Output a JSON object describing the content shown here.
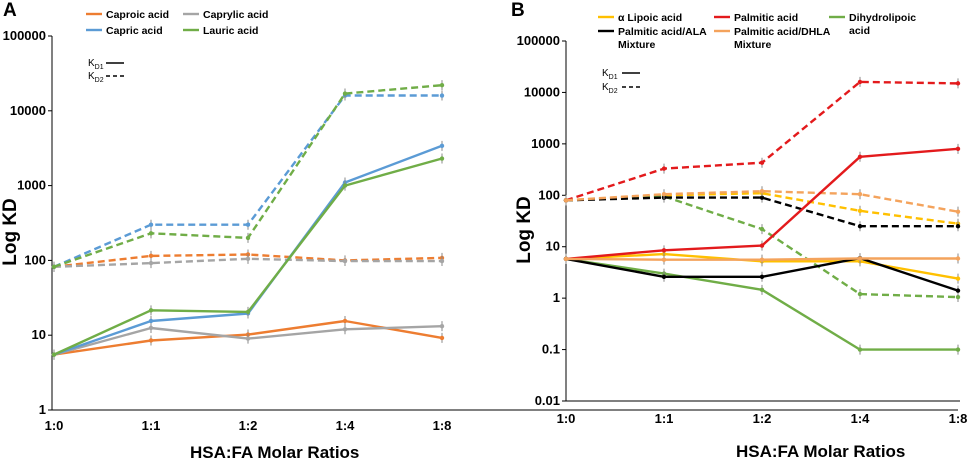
{
  "colors": {
    "orange": "#ed7d31",
    "gray": "#a5a5a5",
    "blue": "#5b9bd5",
    "green": "#70ad47",
    "yellow": "#ffc000",
    "red": "#e31a1c",
    "black": "#000000",
    "lightorange": "#f4a35c",
    "axis": "#000000"
  },
  "chart_data": [
    {
      "panel": "A",
      "type": "line",
      "scale": "log",
      "categories": [
        "1:0",
        "1:1",
        "1:2",
        "1:4",
        "1:8"
      ],
      "xlabel": "HSA:FA Molar Ratios",
      "ylabel": "Log KD",
      "ylim": [
        1,
        100000
      ],
      "yticks": [
        "1",
        "10",
        "100",
        "1000",
        "10000",
        "100000"
      ],
      "legend": [
        {
          "label": "Caproic acid",
          "color": "orange"
        },
        {
          "label": "Caprylic acid",
          "color": "gray"
        },
        {
          "label": "Capric acid",
          "color": "blue"
        },
        {
          "label": "Lauric acid",
          "color": "green"
        }
      ],
      "style_legend": {
        "solid": "KD1",
        "dashed": "KD2"
      },
      "series": [
        {
          "name": "Caproic acid KD1",
          "color": "orange",
          "dash": false,
          "values": [
            5.5,
            8.5,
            10.2,
            15.5,
            9.2
          ]
        },
        {
          "name": "Caprylic acid KD1",
          "color": "gray",
          "dash": false,
          "values": [
            5.5,
            12.5,
            9.0,
            12.0,
            13.2
          ]
        },
        {
          "name": "Capric acid KD1",
          "color": "blue",
          "dash": false,
          "values": [
            5.5,
            15.5,
            19.5,
            1100,
            3400
          ]
        },
        {
          "name": "Lauric acid KD1",
          "color": "green",
          "dash": false,
          "values": [
            5.5,
            21.5,
            20.5,
            1000,
            2300
          ]
        },
        {
          "name": "Caproic acid KD2",
          "color": "orange",
          "dash": true,
          "values": [
            82,
            115,
            120,
            100,
            108
          ]
        },
        {
          "name": "Caprylic acid KD2",
          "color": "gray",
          "dash": true,
          "values": [
            82,
            92,
            105,
            98,
            98
          ]
        },
        {
          "name": "Capric acid KD2",
          "color": "blue",
          "dash": true,
          "values": [
            82,
            300,
            300,
            16000,
            16000
          ]
        },
        {
          "name": "Lauric acid KD2",
          "color": "green",
          "dash": true,
          "values": [
            82,
            230,
            200,
            17000,
            22000
          ]
        }
      ]
    },
    {
      "panel": "B",
      "type": "line",
      "scale": "log",
      "categories": [
        "1:0",
        "1:1",
        "1:2",
        "1:4",
        "1:8"
      ],
      "xlabel": "HSA:FA Molar Ratios",
      "ylabel": "Log KD",
      "ylim": [
        0.01,
        100000
      ],
      "yticks": [
        "0.01",
        "0.1",
        "1",
        "10",
        "100",
        "1000",
        "10000",
        "100000"
      ],
      "legend": [
        {
          "label": "α Lipoic acid",
          "color": "yellow"
        },
        {
          "label": "Palmitic acid",
          "color": "red"
        },
        {
          "label": "Dihydrolipoic acid",
          "color": "green"
        },
        {
          "label": "Palmitic acid/ALA Mixture",
          "color": "black"
        },
        {
          "label": "Palmitic acid/DHLA Mixture",
          "color": "lightorange"
        }
      ],
      "style_legend": {
        "solid": "KD1",
        "dashed": "KD2"
      },
      "series": [
        {
          "name": "α Lipoic acid KD1",
          "color": "yellow",
          "dash": false,
          "values": [
            5.8,
            7.2,
            5.2,
            5.2,
            2.4
          ]
        },
        {
          "name": "Palmitic acid KD1",
          "color": "red",
          "dash": false,
          "values": [
            5.8,
            8.5,
            10.5,
            560,
            800
          ]
        },
        {
          "name": "Dihydrolipoic acid KD1",
          "color": "green",
          "dash": false,
          "values": [
            5.8,
            3.0,
            1.45,
            0.1,
            0.1
          ]
        },
        {
          "name": "Palmitic acid/ALA Mixture KD1",
          "color": "black",
          "dash": false,
          "values": [
            5.8,
            2.6,
            2.6,
            6.0,
            1.4
          ]
        },
        {
          "name": "Palmitic acid/DHLA Mixture KD1",
          "color": "lightorange",
          "dash": false,
          "values": [
            5.8,
            5.6,
            5.6,
            5.9,
            5.9
          ]
        },
        {
          "name": "α Lipoic acid KD2",
          "color": "yellow",
          "dash": true,
          "values": [
            80,
            100,
            110,
            50,
            28
          ]
        },
        {
          "name": "Palmitic acid KD2",
          "color": "red",
          "dash": true,
          "values": [
            80,
            330,
            430,
            16000,
            15000
          ]
        },
        {
          "name": "Dihydrolipoic acid KD2",
          "color": "green",
          "dash": true,
          "values": [
            80,
            95,
            22,
            1.2,
            1.05
          ]
        },
        {
          "name": "Palmitic acid/ALA Mixture KD2",
          "color": "black",
          "dash": true,
          "values": [
            80,
            90,
            90,
            25,
            25
          ]
        },
        {
          "name": "Palmitic acid/DHLA Mixture KD2",
          "color": "lightorange",
          "dash": true,
          "values": [
            80,
            105,
            120,
            105,
            48
          ]
        }
      ]
    }
  ]
}
